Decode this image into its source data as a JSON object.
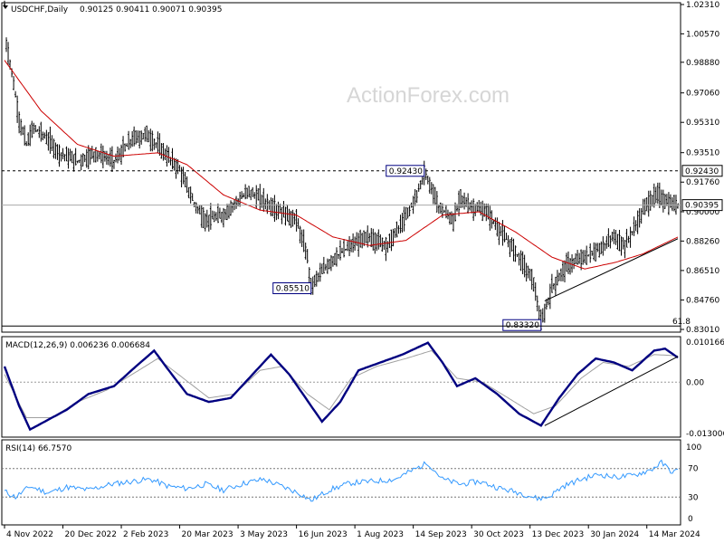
{
  "header": {
    "symbol": "USDCHF,Daily",
    "ohlc": "0.90125 0.90411 0.90071 0.90395"
  },
  "watermark": "ActionForex.com",
  "colors": {
    "candle": "#000000",
    "sma": "#cc0000",
    "macd": "#000080",
    "signal": "#a0a0a0",
    "rsi": "#3399ff",
    "dash": "#000000"
  },
  "chart_data": [
    {
      "type": "line",
      "panel": "price",
      "ylim": [
        0.8301,
        1.0231
      ],
      "y_ticks": [
        "1.02310",
        "1.00570",
        "0.98880",
        "0.97060",
        "0.95310",
        "0.93510",
        "0.91760",
        "0.90000",
        "0.88260",
        "0.86510",
        "0.84760",
        "0.83010"
      ],
      "y_tick_values": [
        1.0231,
        1.0057,
        0.9888,
        0.9706,
        0.9531,
        0.9351,
        0.9176,
        0.9,
        0.8826,
        0.8651,
        0.8476,
        0.8301
      ],
      "x_labels": [
        "4 Nov 2022",
        "20 Dec 2022",
        "2 Feb 2023",
        "20 Mar 2023",
        "3 May 2023",
        "16 Jun 2023",
        "1 Aug 2023",
        "14 Sep 2023",
        "30 Oct 2023",
        "13 Dec 2023",
        "30 Jan 2024",
        "14 Mar 2024"
      ],
      "x_label_index": [
        0,
        32,
        64,
        96,
        128,
        160,
        192,
        224,
        256,
        288,
        320,
        352
      ],
      "n_bars": 370,
      "series": [
        {
          "style": "price",
          "keypoints": [
            [
              0,
              1.0231
            ],
            [
              1,
              1.0
            ],
            [
              4,
              0.983
            ],
            [
              8,
              0.955
            ],
            [
              12,
              0.94
            ],
            [
              16,
              0.95
            ],
            [
              22,
              0.945
            ],
            [
              30,
              0.935
            ],
            [
              40,
              0.93
            ],
            [
              50,
              0.935
            ],
            [
              60,
              0.93
            ],
            [
              70,
              0.943
            ],
            [
              78,
              0.946
            ],
            [
              86,
              0.937
            ],
            [
              96,
              0.925
            ],
            [
              104,
              0.905
            ],
            [
              110,
              0.895
            ],
            [
              120,
              0.898
            ],
            [
              126,
              0.905
            ],
            [
              134,
              0.912
            ],
            [
              144,
              0.905
            ],
            [
              152,
              0.9
            ],
            [
              160,
              0.895
            ],
            [
              166,
              0.873
            ],
            [
              168,
              0.8551
            ],
            [
              172,
              0.862
            ],
            [
              180,
              0.872
            ],
            [
              190,
              0.88
            ],
            [
              200,
              0.885
            ],
            [
              210,
              0.88
            ],
            [
              220,
              0.897
            ],
            [
              226,
              0.91
            ],
            [
              230,
              0.9243
            ],
            [
              238,
              0.903
            ],
            [
              246,
              0.895
            ],
            [
              250,
              0.908
            ],
            [
              256,
              0.903
            ],
            [
              264,
              0.9
            ],
            [
              274,
              0.885
            ],
            [
              282,
              0.873
            ],
            [
              290,
              0.858
            ],
            [
              294,
              0.8332
            ],
            [
              300,
              0.855
            ],
            [
              308,
              0.868
            ],
            [
              318,
              0.873
            ],
            [
              326,
              0.878
            ],
            [
              334,
              0.885
            ],
            [
              340,
              0.88
            ],
            [
              346,
              0.892
            ],
            [
              352,
              0.905
            ],
            [
              358,
              0.91
            ],
            [
              364,
              0.905
            ],
            [
              369,
              0.90395
            ]
          ]
        },
        {
          "name": "",
          "style": "sma",
          "keypoints": [
            [
              0,
              0.99
            ],
            [
              20,
              0.96
            ],
            [
              40,
              0.94
            ],
            [
              60,
              0.933
            ],
            [
              84,
              0.935
            ],
            [
              100,
              0.928
            ],
            [
              120,
              0.91
            ],
            [
              140,
              0.901
            ],
            [
              160,
              0.898
            ],
            [
              180,
              0.885
            ],
            [
              200,
              0.88
            ],
            [
              220,
              0.883
            ],
            [
              240,
              0.898
            ],
            [
              260,
              0.9
            ],
            [
              280,
              0.888
            ],
            [
              300,
              0.873
            ],
            [
              318,
              0.866
            ],
            [
              335,
              0.87
            ],
            [
              350,
              0.875
            ],
            [
              369,
              0.885
            ]
          ]
        }
      ],
      "levels": [
        {
          "value": 0.9243,
          "label": "0.92430",
          "style": "dashed"
        },
        {
          "value": 0.90395,
          "label": "0.90395",
          "style": "solid"
        }
      ],
      "annotations": [
        {
          "label": "0.92430",
          "x_index": 230,
          "y": 0.9243
        },
        {
          "label": "0.85510",
          "x_index": 168,
          "y": 0.8551
        },
        {
          "label": "0.83320",
          "x_index": 294,
          "y": 0.8332
        },
        {
          "label": "61.8",
          "x_index": 366,
          "y": 0.8332
        }
      ],
      "trendline": [
        [
          296,
          0.847
        ],
        [
          369,
          0.884
        ]
      ]
    },
    {
      "type": "line",
      "panel": "macd",
      "title": "MACD(12,26,9) 0.006236 0.006684",
      "ylim": [
        -0.013006,
        0.010166
      ],
      "y_ticks": [
        "0.010166",
        "0.00",
        "-0.013006"
      ],
      "y_tick_values": [
        0.010166,
        0.0,
        -0.013006
      ],
      "series": [
        {
          "name": "",
          "style": "macd",
          "keypoints": [
            [
              0,
              0.004
            ],
            [
              8,
              -0.006
            ],
            [
              14,
              -0.012
            ],
            [
              22,
              -0.01
            ],
            [
              34,
              -0.007
            ],
            [
              46,
              -0.003
            ],
            [
              60,
              -0.001
            ],
            [
              72,
              0.004
            ],
            [
              82,
              0.008
            ],
            [
              90,
              0.003
            ],
            [
              100,
              -0.003
            ],
            [
              112,
              -0.005
            ],
            [
              124,
              -0.004
            ],
            [
              136,
              0.002
            ],
            [
              146,
              0.007
            ],
            [
              156,
              0.002
            ],
            [
              168,
              -0.006
            ],
            [
              174,
              -0.01
            ],
            [
              184,
              -0.005
            ],
            [
              194,
              0.003
            ],
            [
              206,
              0.005
            ],
            [
              218,
              0.007
            ],
            [
              232,
              0.01
            ],
            [
              240,
              0.005
            ],
            [
              248,
              -0.001
            ],
            [
              258,
              0.001
            ],
            [
              270,
              -0.003
            ],
            [
              282,
              -0.008
            ],
            [
              294,
              -0.011
            ],
            [
              304,
              -0.004
            ],
            [
              314,
              0.002
            ],
            [
              324,
              0.006
            ],
            [
              334,
              0.005
            ],
            [
              344,
              0.003
            ],
            [
              356,
              0.008
            ],
            [
              362,
              0.0085
            ],
            [
              369,
              0.006236
            ]
          ]
        },
        {
          "name": "",
          "style": "signal",
          "keypoints": [
            [
              0,
              0.002
            ],
            [
              12,
              -0.009
            ],
            [
              26,
              -0.009
            ],
            [
              40,
              -0.005
            ],
            [
              56,
              -0.002
            ],
            [
              70,
              0.002
            ],
            [
              84,
              0.006
            ],
            [
              98,
              0.001
            ],
            [
              112,
              -0.004
            ],
            [
              126,
              -0.003
            ],
            [
              140,
              0.003
            ],
            [
              152,
              0.004
            ],
            [
              166,
              -0.003
            ],
            [
              178,
              -0.007
            ],
            [
              190,
              0.001
            ],
            [
              204,
              0.004
            ],
            [
              220,
              0.006
            ],
            [
              234,
              0.008
            ],
            [
              248,
              0.001
            ],
            [
              262,
              0.0
            ],
            [
              276,
              -0.004
            ],
            [
              290,
              -0.008
            ],
            [
              302,
              -0.006
            ],
            [
              316,
              0.001
            ],
            [
              328,
              0.005
            ],
            [
              342,
              0.004
            ],
            [
              356,
              0.007
            ],
            [
              369,
              0.006684
            ]
          ]
        }
      ],
      "trendline": [
        [
          296,
          -0.011
        ],
        [
          369,
          0.0065
        ]
      ]
    },
    {
      "type": "line",
      "panel": "rsi",
      "title": "RSI(14) 66.7570",
      "ylim": [
        0,
        100
      ],
      "y_ticks": [
        "100",
        "70",
        "30",
        "0"
      ],
      "y_tick_values": [
        100,
        70,
        30,
        0
      ],
      "series": [
        {
          "name": "",
          "style": "rsi",
          "keypoints": [
            [
              0,
              38
            ],
            [
              6,
              30
            ],
            [
              14,
              45
            ],
            [
              24,
              36
            ],
            [
              34,
              44
            ],
            [
              46,
              40
            ],
            [
              58,
              48
            ],
            [
              70,
              52
            ],
            [
              80,
              55
            ],
            [
              90,
              45
            ],
            [
              100,
              42
            ],
            [
              110,
              48
            ],
            [
              120,
              40
            ],
            [
              132,
              50
            ],
            [
              142,
              55
            ],
            [
              152,
              45
            ],
            [
              162,
              35
            ],
            [
              168,
              25
            ],
            [
              178,
              40
            ],
            [
              190,
              50
            ],
            [
              202,
              52
            ],
            [
              214,
              55
            ],
            [
              224,
              68
            ],
            [
              232,
              78
            ],
            [
              240,
              55
            ],
            [
              250,
              48
            ],
            [
              260,
              52
            ],
            [
              272,
              42
            ],
            [
              284,
              35
            ],
            [
              292,
              28
            ],
            [
              298,
              30
            ],
            [
              306,
              45
            ],
            [
              316,
              55
            ],
            [
              326,
              62
            ],
            [
              334,
              58
            ],
            [
              344,
              60
            ],
            [
              354,
              68
            ],
            [
              360,
              78
            ],
            [
              366,
              65
            ],
            [
              369,
              66.757
            ]
          ]
        }
      ]
    }
  ]
}
